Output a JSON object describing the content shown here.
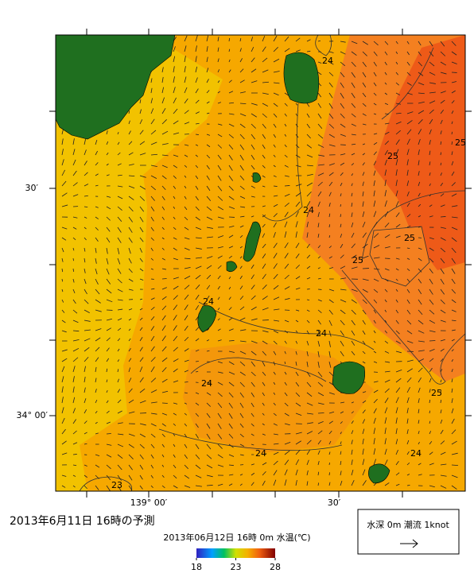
{
  "map": {
    "lat_labels": [
      "30′",
      "34° 00′"
    ],
    "lon_labels": [
      "139° 00′",
      "30′"
    ],
    "contour_labels": [
      24,
      25,
      25,
      24,
      25,
      25,
      24,
      24,
      24,
      25,
      24,
      24,
      23
    ],
    "caption": "2013年6月11日 16時の予測",
    "colorbar": {
      "title": "2013年06月12日 16時 0m 水温(℃)",
      "range": [
        18,
        28
      ],
      "ticks": [
        18,
        23,
        28
      ]
    },
    "legend": "水深 0m 潮流 1knot"
  }
}
